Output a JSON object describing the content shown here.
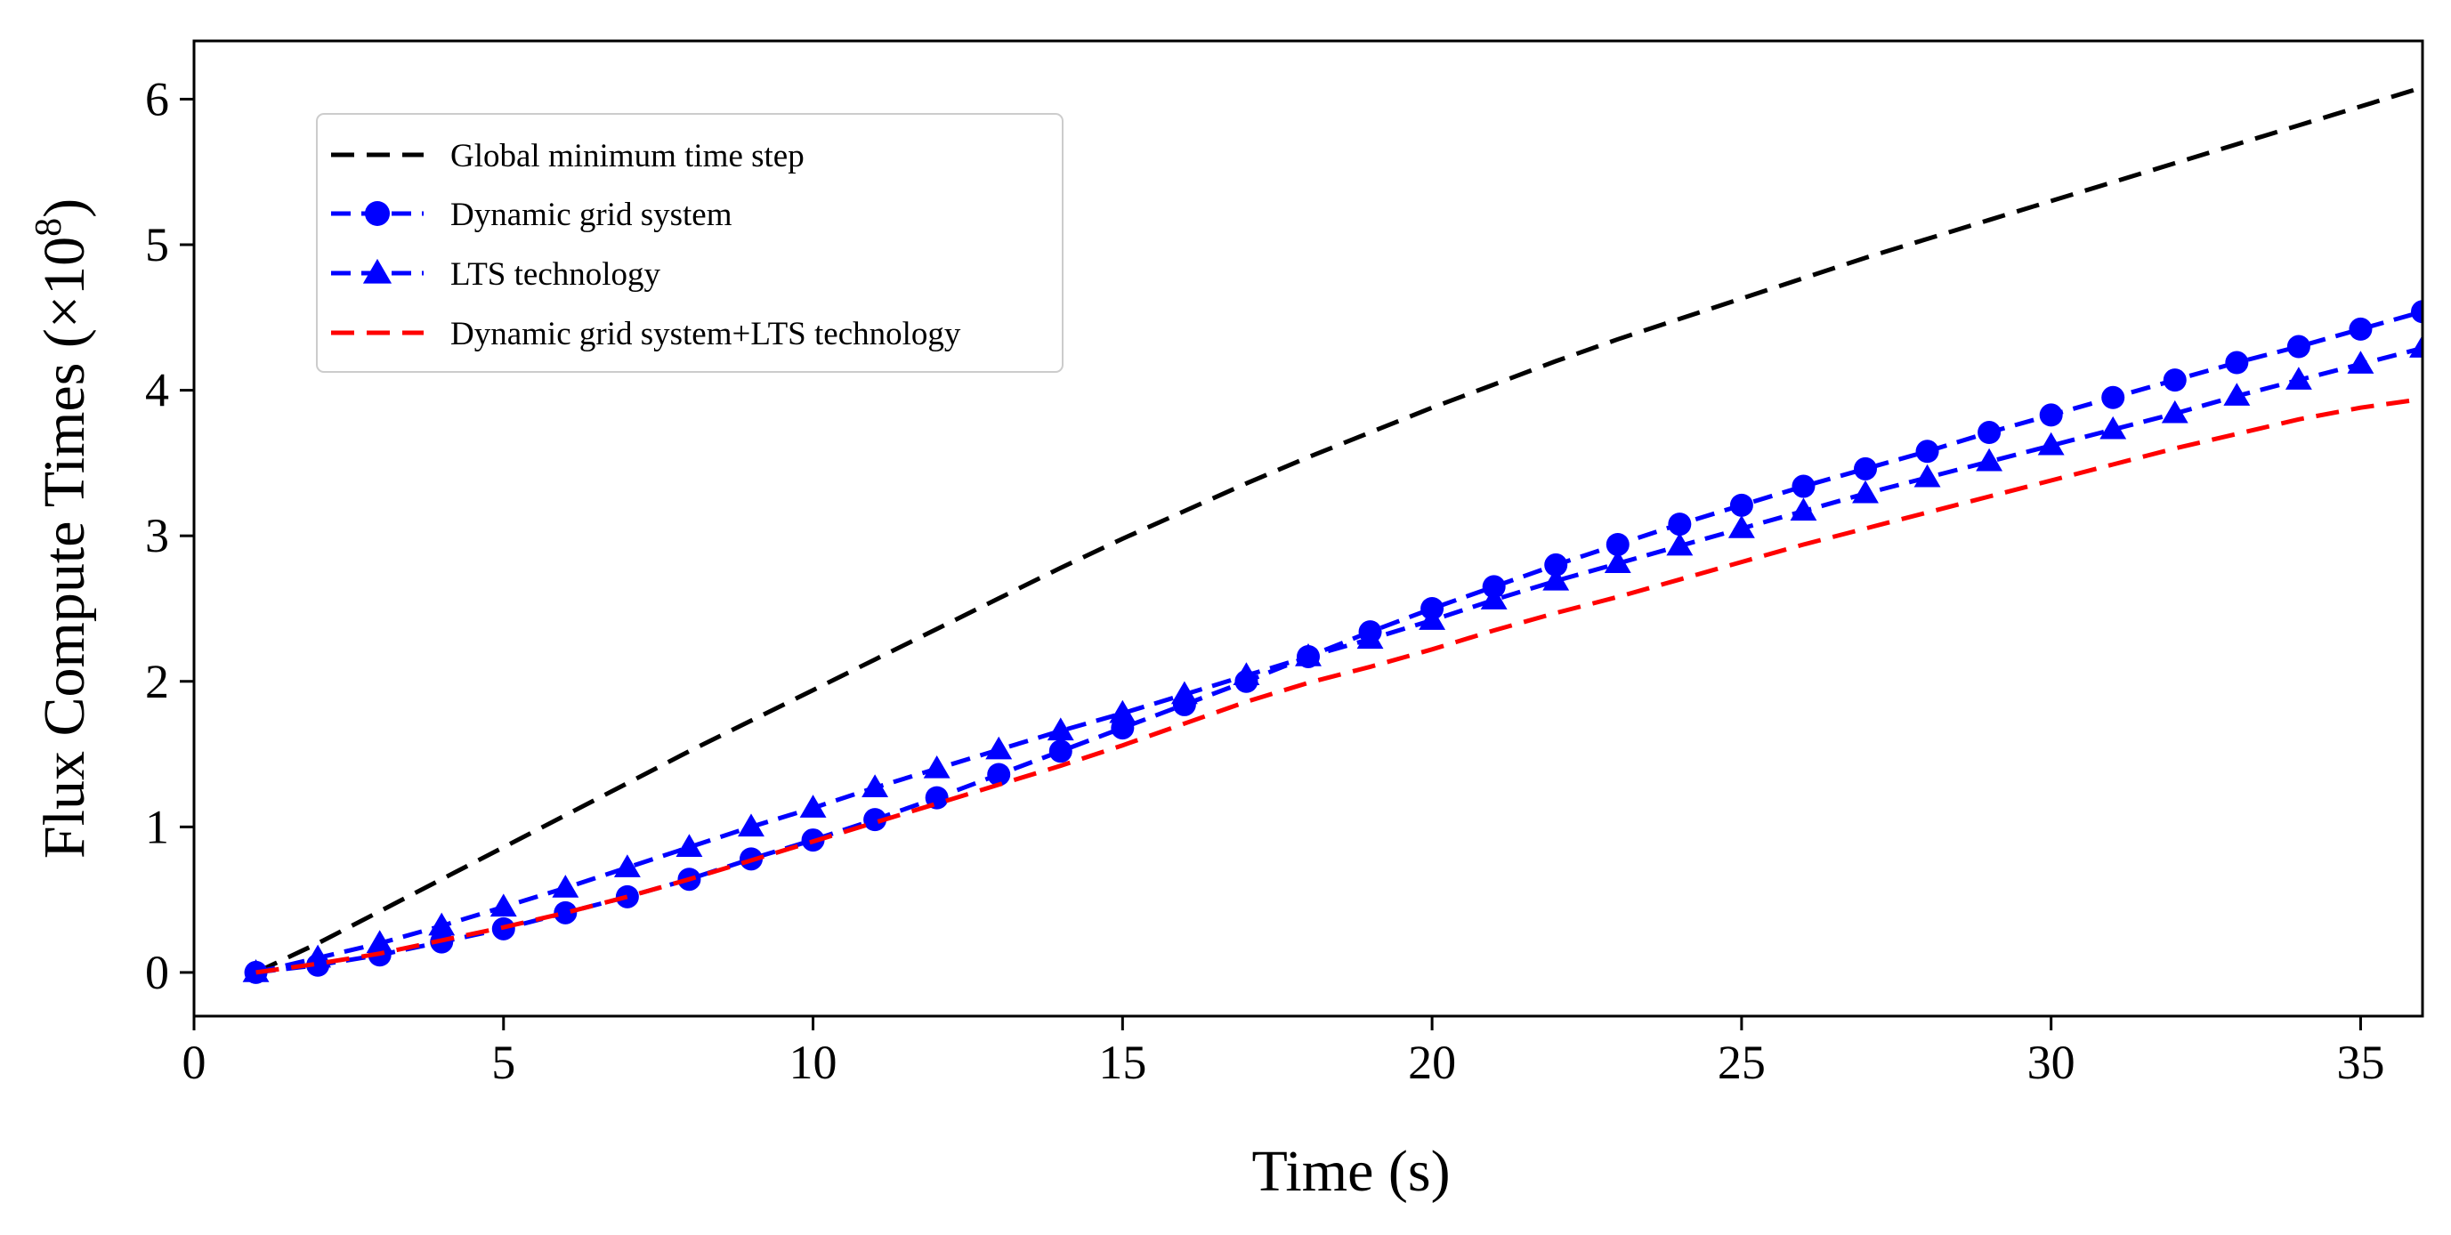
{
  "chart_data": {
    "type": "line",
    "title": "",
    "xlabel": "Time (s)",
    "ylabel": "Flux Compute Times (×10",
    "ylabel_exponent": "8",
    "ylabel_suffix": ")",
    "xlim": [
      0,
      36
    ],
    "ylim": [
      -0.3,
      6.4
    ],
    "x_ticks": [
      0,
      5,
      10,
      15,
      20,
      25,
      30,
      35
    ],
    "x_tick_labels": [
      "0",
      "5",
      "10",
      "15",
      "20",
      "25",
      "30",
      "35"
    ],
    "y_ticks": [
      0,
      1,
      2,
      3,
      4,
      5,
      6
    ],
    "y_tick_labels": [
      "0",
      "1",
      "2",
      "3",
      "4",
      "5",
      "6"
    ],
    "grid": false,
    "legend_position": "upper-left",
    "series": [
      {
        "name": "Global minimum time step",
        "color": "#000000",
        "marker": "none",
        "x": [
          1,
          2,
          3,
          4,
          5,
          6,
          7,
          8,
          9,
          10,
          11,
          12,
          13,
          14,
          15,
          16,
          17,
          18,
          19,
          20,
          21,
          22,
          23,
          24,
          25,
          26,
          27,
          28,
          29,
          30,
          31,
          32,
          33,
          34,
          35,
          36
        ],
        "y": [
          0.0,
          0.2,
          0.42,
          0.64,
          0.86,
          1.08,
          1.3,
          1.52,
          1.73,
          1.94,
          2.15,
          2.36,
          2.57,
          2.78,
          2.98,
          3.17,
          3.36,
          3.54,
          3.71,
          3.88,
          4.04,
          4.2,
          4.35,
          4.49,
          4.63,
          4.77,
          4.91,
          5.04,
          5.17,
          5.3,
          5.43,
          5.56,
          5.69,
          5.82,
          5.95,
          6.08
        ]
      },
      {
        "name": "Dynamic grid system",
        "color": "#0000ff",
        "marker": "circle",
        "x": [
          1,
          2,
          3,
          4,
          5,
          6,
          7,
          8,
          9,
          10,
          11,
          12,
          13,
          14,
          15,
          16,
          17,
          18,
          19,
          20,
          21,
          22,
          23,
          24,
          25,
          26,
          27,
          28,
          29,
          30,
          31,
          32,
          33,
          34,
          35,
          36
        ],
        "y": [
          0.0,
          0.05,
          0.12,
          0.21,
          0.3,
          0.41,
          0.52,
          0.64,
          0.78,
          0.91,
          1.05,
          1.2,
          1.36,
          1.52,
          1.68,
          1.84,
          2.0,
          2.17,
          2.34,
          2.5,
          2.65,
          2.8,
          2.94,
          3.08,
          3.21,
          3.34,
          3.46,
          3.58,
          3.71,
          3.83,
          3.95,
          4.07,
          4.19,
          4.3,
          4.42,
          4.54
        ]
      },
      {
        "name": "LTS technology",
        "color": "#0000ff",
        "marker": "triangle",
        "x": [
          1,
          2,
          3,
          4,
          5,
          6,
          7,
          8,
          9,
          10,
          11,
          12,
          13,
          14,
          15,
          16,
          17,
          18,
          19,
          20,
          21,
          22,
          23,
          24,
          25,
          26,
          27,
          28,
          29,
          30,
          31,
          32,
          33,
          34,
          35,
          36
        ],
        "y": [
          0.0,
          0.1,
          0.2,
          0.32,
          0.45,
          0.58,
          0.72,
          0.86,
          1.0,
          1.13,
          1.27,
          1.4,
          1.53,
          1.66,
          1.78,
          1.91,
          2.04,
          2.17,
          2.29,
          2.42,
          2.56,
          2.69,
          2.81,
          2.93,
          3.05,
          3.17,
          3.29,
          3.4,
          3.51,
          3.62,
          3.73,
          3.84,
          3.96,
          4.07,
          4.18,
          4.29
        ]
      },
      {
        "name": "Dynamic grid system+LTS technology",
        "color": "#ff0000",
        "marker": "none",
        "x": [
          1,
          2,
          3,
          4,
          5,
          6,
          7,
          8,
          9,
          10,
          11,
          12,
          13,
          14,
          15,
          16,
          17,
          18,
          19,
          20,
          21,
          22,
          23,
          24,
          25,
          26,
          27,
          28,
          29,
          30,
          31,
          32,
          33,
          34,
          35,
          36
        ],
        "y": [
          0.0,
          0.06,
          0.13,
          0.22,
          0.31,
          0.41,
          0.52,
          0.64,
          0.77,
          0.9,
          1.03,
          1.16,
          1.29,
          1.42,
          1.56,
          1.71,
          1.86,
          1.99,
          2.1,
          2.22,
          2.35,
          2.47,
          2.58,
          2.7,
          2.82,
          2.94,
          3.05,
          3.16,
          3.27,
          3.38,
          3.49,
          3.6,
          3.7,
          3.8,
          3.88,
          3.94
        ]
      }
    ]
  }
}
